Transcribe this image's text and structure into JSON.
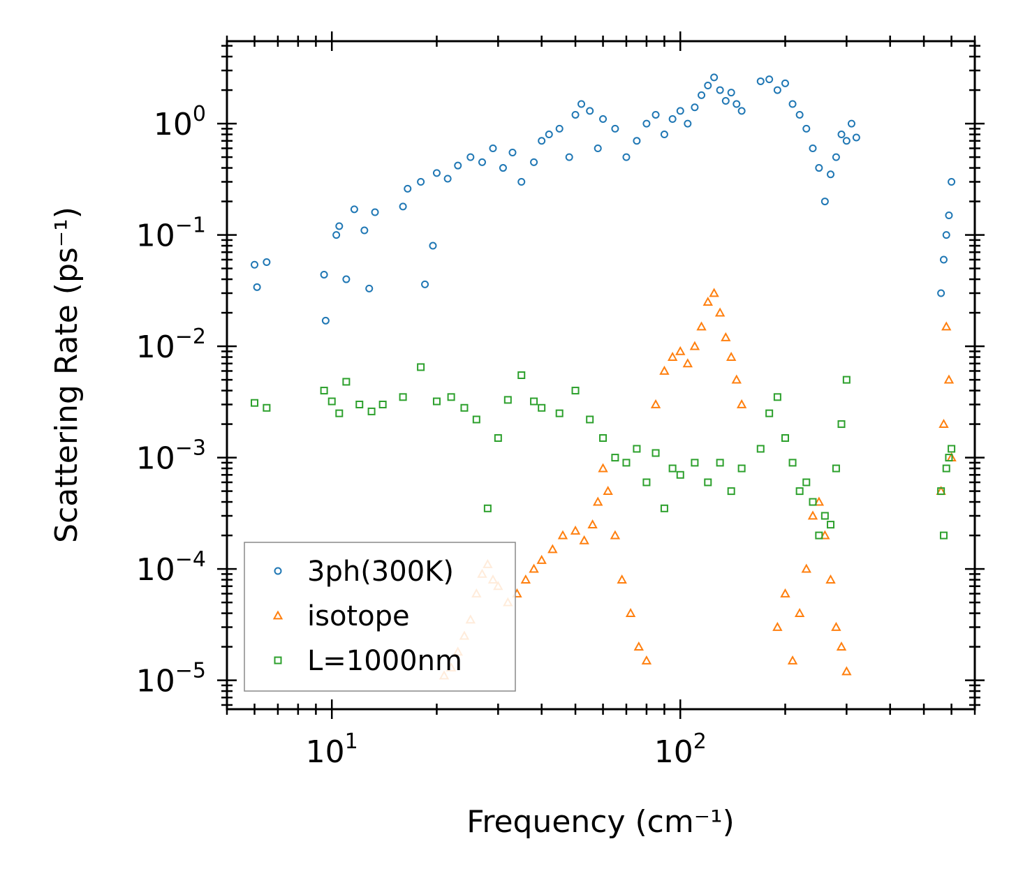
{
  "chart_data": {
    "type": "scatter",
    "title": "",
    "xlabel": "Frequency (cm⁻¹)",
    "ylabel": "Scattering Rate (ps⁻¹)",
    "xscale": "log",
    "yscale": "log",
    "xlim": [
      5,
      700
    ],
    "ylim": [
      5.5e-06,
      5.5
    ],
    "x_tick_labels": [
      "10^1",
      "10^2"
    ],
    "y_tick_labels": [
      "10^-5",
      "10^-4",
      "10^-3",
      "10^-2",
      "10^-1",
      "10^0"
    ],
    "legend_position": "lower-left",
    "series": [
      {
        "name": "3ph(300K)",
        "marker": "circle",
        "color": "#1f77b4",
        "x": [
          6.0,
          6.1,
          6.5,
          9.5,
          9.6,
          10.3,
          10.5,
          11.0,
          11.6,
          12.4,
          12.8,
          13.3,
          16.0,
          16.5,
          18.0,
          18.5,
          19.5,
          20.0,
          21.5,
          23.0,
          25.0,
          27.0,
          29.0,
          31.0,
          33.0,
          35.0,
          38.0,
          40.0,
          42.0,
          45.0,
          48.0,
          50.0,
          52.0,
          55.0,
          58.0,
          60.0,
          65.0,
          70.0,
          75.0,
          80.0,
          85.0,
          90.0,
          95.0,
          100.0,
          105.0,
          110.0,
          115.0,
          120.0,
          125.0,
          130.0,
          135.0,
          140.0,
          145.0,
          150.0,
          170.0,
          180.0,
          190.0,
          200.0,
          210.0,
          220.0,
          230.0,
          240.0,
          250.0,
          260.0,
          270.0,
          280.0,
          290.0,
          300.0,
          310.0,
          320.0,
          560.0,
          570.0,
          580.0,
          590.0,
          600.0
        ],
        "y": [
          0.054,
          0.034,
          0.057,
          0.044,
          0.017,
          0.1,
          0.12,
          0.04,
          0.17,
          0.11,
          0.033,
          0.16,
          0.18,
          0.26,
          0.3,
          0.036,
          0.08,
          0.36,
          0.32,
          0.42,
          0.5,
          0.45,
          0.6,
          0.4,
          0.55,
          0.3,
          0.45,
          0.7,
          0.8,
          0.9,
          0.5,
          1.2,
          1.5,
          1.3,
          0.6,
          1.1,
          0.9,
          0.5,
          0.7,
          1.0,
          1.2,
          0.8,
          1.1,
          1.3,
          1.0,
          1.4,
          1.8,
          2.2,
          2.6,
          2.0,
          1.6,
          1.9,
          1.5,
          1.3,
          2.4,
          2.5,
          2.0,
          2.3,
          1.5,
          1.2,
          0.9,
          0.6,
          0.4,
          0.2,
          0.35,
          0.5,
          0.8,
          0.7,
          1.0,
          0.75,
          0.03,
          0.06,
          0.1,
          0.15,
          0.3
        ]
      },
      {
        "name": "isotope",
        "marker": "triangle",
        "color": "#ff7f0e",
        "x": [
          21.0,
          22.0,
          23.0,
          24.0,
          25.0,
          26.0,
          27.0,
          28.0,
          29.0,
          30.0,
          32.0,
          34.0,
          36.0,
          38.0,
          40.0,
          43.0,
          46.0,
          50.0,
          53.0,
          56.0,
          58.0,
          60.0,
          62.0,
          65.0,
          68.0,
          72.0,
          76.0,
          80.0,
          85.0,
          90.0,
          95.0,
          100.0,
          105.0,
          110.0,
          115.0,
          120.0,
          125.0,
          130.0,
          135.0,
          140.0,
          145.0,
          150.0,
          190.0,
          200.0,
          210.0,
          220.0,
          230.0,
          240.0,
          250.0,
          260.0,
          270.0,
          280.0,
          290.0,
          300.0,
          560.0,
          570.0,
          580.0,
          590.0,
          600.0
        ],
        "y": [
          1.1e-05,
          1.3e-05,
          1.8e-05,
          2.5e-05,
          3.5e-05,
          6e-05,
          9e-05,
          0.00011,
          8e-05,
          7e-05,
          5e-05,
          6e-05,
          8e-05,
          0.0001,
          0.00012,
          0.00015,
          0.0002,
          0.00022,
          0.00018,
          0.00025,
          0.0004,
          0.0008,
          0.0005,
          0.0002,
          8e-05,
          4e-05,
          2e-05,
          1.5e-05,
          0.003,
          0.006,
          0.008,
          0.009,
          0.007,
          0.01,
          0.015,
          0.025,
          0.03,
          0.02,
          0.012,
          0.008,
          0.005,
          0.003,
          3e-05,
          6e-05,
          1.5e-05,
          4e-05,
          0.0001,
          0.0003,
          0.0004,
          0.0002,
          8e-05,
          3e-05,
          2e-05,
          1.2e-05,
          0.0005,
          0.002,
          0.015,
          0.005,
          0.001
        ]
      },
      {
        "name": "L=1000nm",
        "marker": "square",
        "color": "#2ca02c",
        "x": [
          6.0,
          6.5,
          9.5,
          10.0,
          10.5,
          11.0,
          12.0,
          13.0,
          14.0,
          16.0,
          18.0,
          20.0,
          22.0,
          24.0,
          26.0,
          28.0,
          30.0,
          32.0,
          35.0,
          38.0,
          40.0,
          45.0,
          50.0,
          55.0,
          60.0,
          65.0,
          70.0,
          75.0,
          80.0,
          85.0,
          90.0,
          95.0,
          100.0,
          110.0,
          120.0,
          130.0,
          140.0,
          150.0,
          170.0,
          180.0,
          190.0,
          200.0,
          210.0,
          220.0,
          230.0,
          240.0,
          250.0,
          260.0,
          270.0,
          280.0,
          290.0,
          300.0,
          560.0,
          570.0,
          580.0,
          590.0,
          600.0
        ],
        "y": [
          0.0031,
          0.0028,
          0.004,
          0.0032,
          0.0025,
          0.0048,
          0.003,
          0.0026,
          0.003,
          0.0035,
          0.0065,
          0.0032,
          0.0035,
          0.0028,
          0.0022,
          0.00035,
          0.0015,
          0.0033,
          0.0055,
          0.0032,
          0.0028,
          0.0025,
          0.004,
          0.0022,
          0.0015,
          0.001,
          0.0009,
          0.0012,
          0.0006,
          0.0011,
          0.00035,
          0.0008,
          0.0007,
          0.0009,
          0.0006,
          0.0009,
          0.0005,
          0.0008,
          0.0012,
          0.0025,
          0.0035,
          0.0015,
          0.0009,
          0.0005,
          0.0006,
          0.0004,
          0.0002,
          0.0003,
          0.00025,
          0.0008,
          0.002,
          0.005,
          0.0005,
          0.0002,
          0.0008,
          0.001,
          0.0012
        ]
      }
    ]
  }
}
